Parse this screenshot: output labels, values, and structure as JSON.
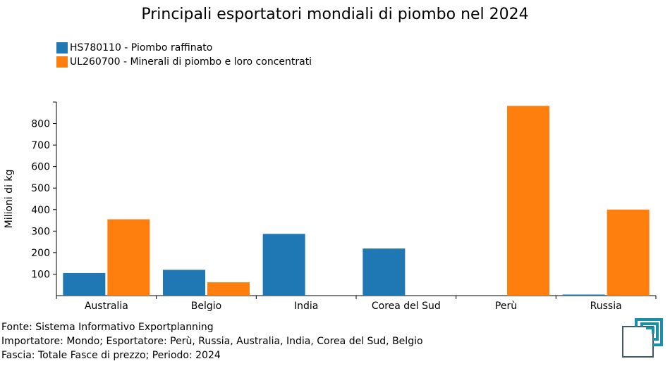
{
  "chart_data": {
    "type": "bar",
    "title": "Principali esportatori mondiali di piombo nel 2024",
    "ylabel": "Milioni di kg",
    "xlabel": "",
    "categories": [
      "Australia",
      "Belgio",
      "India",
      "Corea del Sud",
      "Perù",
      "Russia"
    ],
    "series": [
      {
        "name": "HS780110 - Piombo raffinato",
        "color": "#1f77b4",
        "values": [
          105,
          120,
          287,
          219,
          0,
          5
        ]
      },
      {
        "name": "UL260700 - Minerali di piombo e loro concentrati",
        "color": "#ff7f0e",
        "values": [
          355,
          62,
          0,
          0,
          882,
          400
        ]
      }
    ],
    "ylim": [
      0,
      900
    ],
    "yticks": [
      100,
      200,
      300,
      400,
      500,
      600,
      700,
      800
    ],
    "grid": false,
    "legend_position": "top-left"
  },
  "footer": {
    "source": "Fonte: Sistema Informativo Exportplanning",
    "importer": "Importatore: Mondo; Esportatore: Perù, Russia, Australia, India, Corea del Sud, Belgio",
    "band": "Fascia: Totale Fasce di prezzo; Periodo: 2024"
  },
  "logo": {
    "name": "exportplanning-logo-icon",
    "color": "#1a8fa8",
    "frame_color": "#3d5a66"
  }
}
